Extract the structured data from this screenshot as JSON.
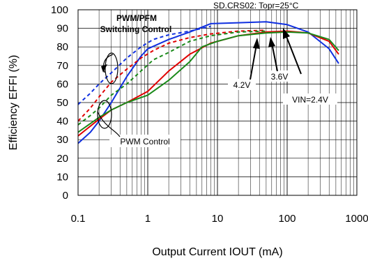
{
  "chart_data": {
    "type": "line",
    "title": "SD.CRS02: Topr=25°C",
    "xlabel": "Output Current IOUT (mA)",
    "ylabel": "Efficiency EFFI (%)",
    "xscale": "log",
    "xlim": [
      0.1,
      1000
    ],
    "ylim": [
      0,
      100
    ],
    "grid": true,
    "x_tick_labels": [
      "0.1",
      "1",
      "10",
      "100",
      "1000"
    ],
    "y_tick_labels": [
      "0",
      "10",
      "20",
      "30",
      "40",
      "50",
      "60",
      "70",
      "80",
      "90",
      "100"
    ],
    "colors": {
      "vin_2_4": "#1a8a1a",
      "vin_3_6": "#e00000",
      "vin_4_2": "#1030e0"
    },
    "annotations": {
      "pwm_pfm_line1": "PWM/PFM",
      "pwm_pfm_line2": "Switching Control",
      "pwm_control": "PWM Control",
      "label_4_2": "4.2V",
      "label_3_6": "3.6V",
      "label_2_4": "VIN=2.4V"
    },
    "series": [
      {
        "key": "vin_4_2_pwm",
        "style": "solid",
        "color": "#1030e0",
        "x": [
          0.1,
          0.15,
          0.2,
          0.3,
          0.5,
          0.8,
          1,
          2,
          4,
          8,
          20,
          50,
          100,
          200,
          400,
          550
        ],
        "y": [
          28,
          34,
          40,
          50,
          64,
          75,
          79,
          84,
          88,
          92.5,
          93,
          93.5,
          92,
          88,
          79,
          71
        ]
      },
      {
        "key": "vin_3_6_pwm",
        "style": "solid",
        "color": "#e00000",
        "x": [
          0.1,
          0.2,
          0.3,
          0.5,
          1,
          2,
          4,
          8,
          20,
          50,
          100,
          200,
          400,
          550
        ],
        "y": [
          32,
          41,
          46,
          50,
          56,
          67,
          76,
          82,
          86,
          88,
          88.5,
          87.5,
          83,
          76
        ]
      },
      {
        "key": "vin_2_4_pwm",
        "style": "solid",
        "color": "#1a8a1a",
        "x": [
          0.1,
          0.2,
          0.3,
          0.5,
          1,
          2,
          4,
          6,
          10,
          20,
          50,
          100,
          200,
          400,
          550
        ],
        "y": [
          34,
          42,
          46,
          50,
          54,
          62,
          72,
          80,
          83,
          86,
          87.5,
          88,
          87.5,
          84,
          78
        ]
      },
      {
        "key": "vin_4_2_pfm",
        "style": "dashed",
        "color": "#1030e0",
        "x": [
          0.1,
          0.15,
          0.2,
          0.3,
          0.5,
          0.8,
          1.2,
          2,
          4,
          8
        ],
        "y": [
          49,
          55,
          60,
          66,
          74,
          80,
          84,
          86.5,
          88.5,
          91
        ]
      },
      {
        "key": "vin_3_6_pfm",
        "style": "dashed",
        "color": "#e00000",
        "x": [
          0.1,
          0.15,
          0.2,
          0.3,
          0.5,
          0.8,
          1.2,
          2,
          4,
          8,
          20,
          50
        ],
        "y": [
          40,
          47,
          53,
          61,
          68,
          74,
          78,
          82,
          85,
          87,
          88.5,
          89
        ]
      },
      {
        "key": "vin_2_4_pfm",
        "style": "dashed",
        "color": "#1a8a1a",
        "x": [
          0.1,
          0.15,
          0.2,
          0.3,
          0.5,
          0.8,
          1.2,
          2,
          4,
          8,
          20,
          50
        ],
        "y": [
          38,
          43,
          47,
          54,
          60,
          67,
          73,
          77,
          83,
          86,
          88,
          88.5
        ]
      }
    ]
  }
}
